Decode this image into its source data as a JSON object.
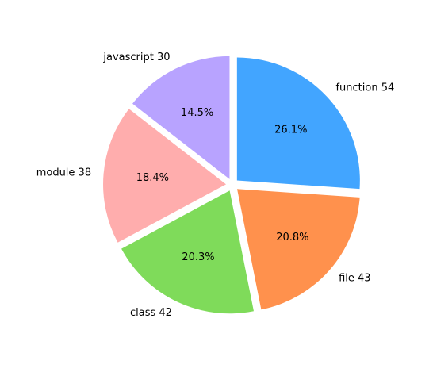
{
  "chart_data": {
    "type": "pie",
    "categories": [
      "function",
      "file",
      "class",
      "module",
      "javascript"
    ],
    "values": [
      54,
      43,
      42,
      38,
      30
    ],
    "labels": [
      "function 54",
      "file 43",
      "class 42",
      "module 38",
      "javascript 30"
    ],
    "percent_labels": [
      "26.1%",
      "20.8%",
      "20.3%",
      "18.4%",
      "14.5%"
    ],
    "colors": [
      "#42a5ff",
      "#ff914d",
      "#7fdb5a",
      "#ffadad",
      "#b8a3ff"
    ],
    "start_angle_deg": 90,
    "direction": "clockwise",
    "exploded": true,
    "title": ""
  }
}
